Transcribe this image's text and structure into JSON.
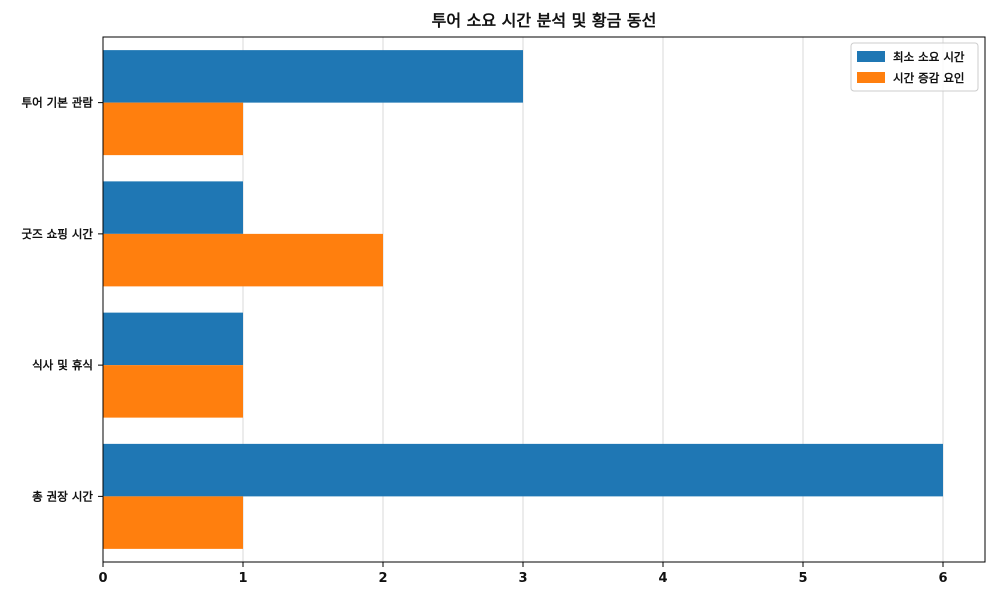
{
  "chart_data": {
    "type": "bar",
    "orientation": "horizontal",
    "title": "투어 소요 시간 분석 및 황금 동선",
    "xlabel": "",
    "ylabel": "",
    "categories": [
      "투어 기본 관람",
      "굿즈 쇼핑 시간",
      "식사 및 휴식",
      "총 권장 시간"
    ],
    "series": [
      {
        "name": "최소 소요 시간",
        "values": [
          3,
          1,
          1,
          6
        ],
        "color": "#1f77b4"
      },
      {
        "name": "시간 증감 요인",
        "values": [
          1,
          2,
          1,
          1
        ],
        "color": "#ff7f0e"
      }
    ],
    "xlim": [
      0,
      6.3
    ],
    "xticks": [
      "0",
      "1",
      "2",
      "3",
      "4",
      "5",
      "6"
    ],
    "grid": "vertical",
    "legend_position": "top-right"
  }
}
